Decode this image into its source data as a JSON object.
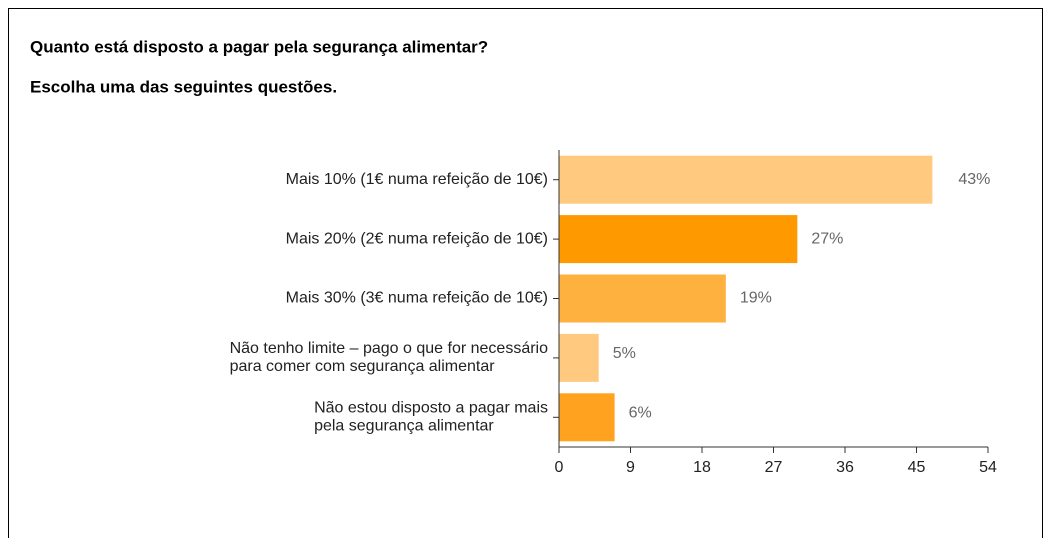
{
  "chart_data": {
    "type": "bar",
    "orientation": "horizontal",
    "title": "Quanto está disposto a pagar pela segurança alimentar?",
    "subtitle": "Escolha uma das seguintes questões.",
    "categories": [
      "Mais 10% (1€ numa refeição de 10€)",
      "Mais 20% (2€ numa refeição de 10€)",
      "Mais 30% (3€ numa refeição de 10€)",
      "Não tenho limite – pago o que for necessário\npara comer com segurança alimentar",
      "Não estou disposto a pagar mais\npela segurança alimentar"
    ],
    "values": [
      47,
      30,
      21,
      5,
      7
    ],
    "value_labels": [
      "43%",
      "27%",
      "19%",
      "5%",
      "6%"
    ],
    "colors": [
      "#ffc97f",
      "#ff9900",
      "#ffb13f",
      "#ffca80",
      "#ffa21f"
    ],
    "xlim": [
      0,
      54
    ],
    "xticks": [
      0,
      9,
      18,
      27,
      36,
      45,
      54
    ],
    "grid": false
  }
}
